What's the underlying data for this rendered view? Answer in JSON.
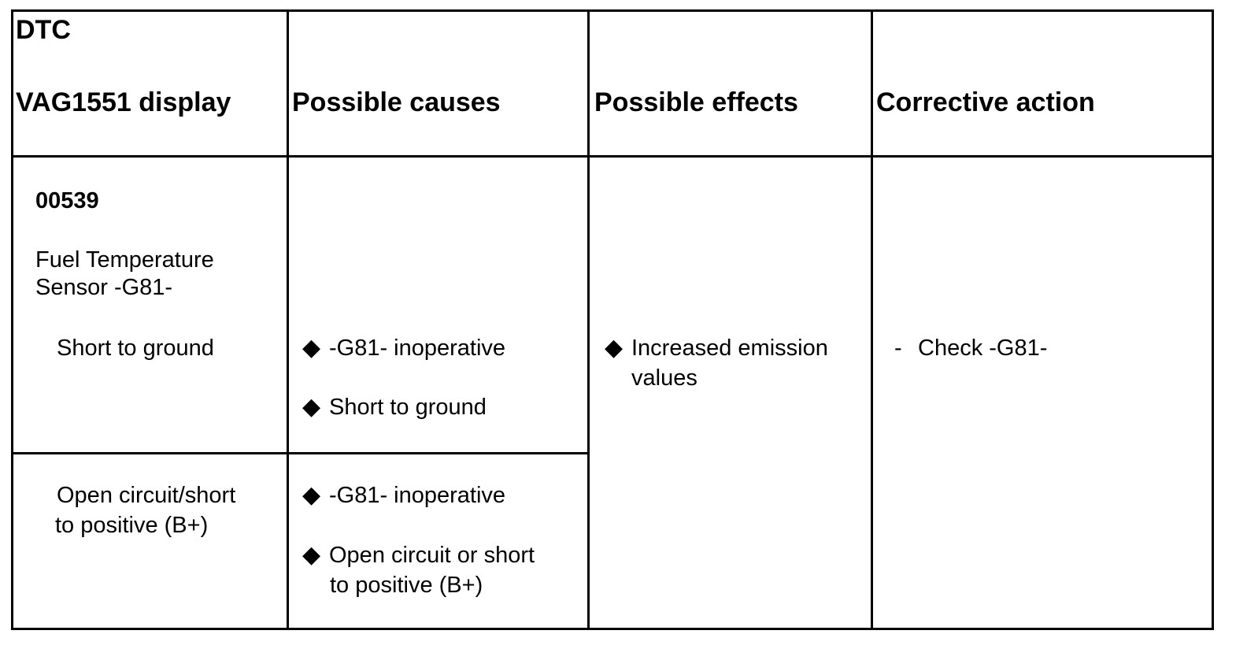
{
  "header": {
    "dtc_label": "DTC",
    "display_label": "VAG1551 display",
    "causes_label": "Possible causes",
    "effects_label": "Possible effects",
    "action_label": "Corrective action"
  },
  "row": {
    "code": "00539",
    "component_line1": "Fuel Temperature",
    "component_line2": "Sensor -G81-",
    "conditions": [
      {
        "label_line1": "Short to ground",
        "label_line2": "",
        "causes": [
          {
            "line1": "-G81- inoperative",
            "line2": ""
          },
          {
            "line1": "Short to ground",
            "line2": ""
          }
        ]
      },
      {
        "label_line1": "Open circuit/short",
        "label_line2": "to positive (B+)",
        "causes": [
          {
            "line1": "-G81- inoperative",
            "line2": ""
          },
          {
            "line1": "Open circuit or short",
            "line2": "to positive (B+)"
          }
        ]
      }
    ],
    "effect_line1": "Increased emission",
    "effect_line2": "values",
    "action": "Check -G81-"
  },
  "icons": {
    "bullet": "diamond-bullet-icon",
    "bullet_glyph": "◆",
    "dash_glyph": "-"
  }
}
